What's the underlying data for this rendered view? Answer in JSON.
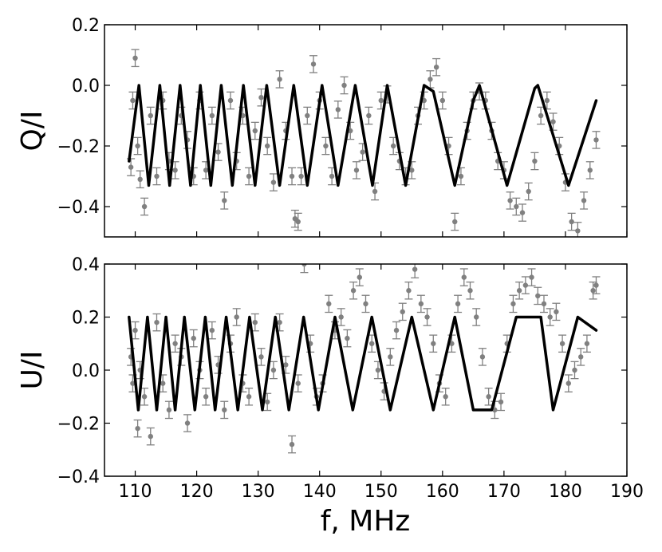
{
  "chart_data": [
    {
      "type": "line",
      "title": "",
      "xlabel": "",
      "ylabel": "Q/I",
      "xlim": [
        105,
        190
      ],
      "ylim": [
        -0.5,
        0.2
      ],
      "yticks": [
        "0.2",
        "0.0",
        "−0.2",
        "−0.4"
      ],
      "ytick_values": [
        0.2,
        0.0,
        -0.2,
        -0.4
      ],
      "grid": false,
      "series": [
        {
          "style": "model curve (solid black line)",
          "color": "#000000",
          "x": [
            109.0,
            110.6,
            112.2,
            114.0,
            115.6,
            117.3,
            119.0,
            120.6,
            122.3,
            124.0,
            125.8,
            127.6,
            129.5,
            131.4,
            133.5,
            135.8,
            138.0,
            140.4,
            143.0,
            145.8,
            148.6,
            151.0,
            154.0,
            157.0,
            158.5,
            162.0,
            165.0,
            166.0,
            170.5,
            175.0,
            175.5,
            180.5,
            185.0
          ],
          "values": [
            -0.25,
            0.0,
            -0.33,
            0.0,
            -0.33,
            0.0,
            -0.33,
            0.0,
            -0.33,
            0.0,
            -0.33,
            0.0,
            -0.33,
            0.0,
            -0.33,
            0.0,
            -0.33,
            0.0,
            -0.33,
            0.0,
            -0.33,
            0.0,
            -0.33,
            0.0,
            -0.02,
            -0.33,
            -0.05,
            0.0,
            -0.33,
            -0.01,
            0.0,
            -0.33,
            -0.05
          ]
        },
        {
          "style": "measured points with error bars (grey)",
          "color": "#808080",
          "x": [
            109.3,
            109.6,
            110.0,
            110.4,
            110.8,
            111.5,
            112.5,
            113.5,
            114.5,
            115.5,
            116.5,
            117.5,
            118.5,
            119.5,
            120.5,
            121.5,
            122.5,
            123.5,
            124.5,
            125.5,
            126.5,
            127.5,
            128.5,
            129.5,
            130.5,
            131.5,
            132.5,
            133.5,
            134.5,
            135.5,
            136.0,
            136.5,
            137.0,
            138.0,
            139.0,
            140.0,
            141.0,
            142.0,
            143.0,
            144.0,
            145.0,
            146.0,
            147.0,
            148.0,
            149.0,
            150.0,
            151.0,
            152.0,
            153.0,
            154.0,
            155.0,
            156.0,
            157.0,
            158.0,
            159.0,
            160.0,
            161.0,
            162.0,
            163.0,
            164.0,
            165.0,
            166.0,
            167.0,
            168.0,
            169.0,
            170.0,
            171.0,
            172.0,
            173.0,
            174.0,
            175.0,
            176.0,
            177.0,
            178.0,
            179.0,
            180.0,
            181.0,
            182.0,
            183.0,
            184.0,
            185.0
          ],
          "values": [
            -0.27,
            -0.05,
            0.09,
            -0.2,
            -0.31,
            -0.4,
            -0.1,
            -0.3,
            -0.05,
            -0.25,
            -0.28,
            -0.1,
            -0.18,
            -0.3,
            -0.05,
            -0.28,
            -0.1,
            -0.22,
            -0.38,
            -0.05,
            -0.25,
            -0.1,
            -0.3,
            -0.15,
            -0.04,
            -0.2,
            -0.32,
            0.02,
            -0.15,
            -0.3,
            -0.44,
            -0.45,
            -0.3,
            -0.1,
            0.07,
            -0.05,
            -0.2,
            -0.3,
            -0.08,
            0.0,
            -0.15,
            -0.28,
            -0.22,
            -0.1,
            -0.35,
            -0.05,
            -0.03,
            -0.2,
            -0.25,
            -0.3,
            -0.28,
            -0.1,
            -0.05,
            0.02,
            0.06,
            -0.05,
            -0.2,
            -0.45,
            -0.3,
            -0.15,
            -0.05,
            -0.02,
            -0.05,
            -0.15,
            -0.25,
            -0.28,
            -0.38,
            -0.4,
            -0.42,
            -0.35,
            -0.25,
            -0.1,
            -0.05,
            -0.12,
            -0.2,
            -0.32,
            -0.45,
            -0.48,
            -0.38,
            -0.28,
            -0.18
          ]
        }
      ]
    },
    {
      "type": "line",
      "title": "",
      "xlabel": "f, MHz",
      "ylabel": "U/I",
      "xlim": [
        105,
        190
      ],
      "ylim": [
        -0.4,
        0.4
      ],
      "xticks": [
        "110",
        "120",
        "130",
        "140",
        "150",
        "160",
        "170",
        "180",
        "190"
      ],
      "xtick_values": [
        110,
        120,
        130,
        140,
        150,
        160,
        170,
        180,
        190
      ],
      "yticks": [
        "0.4",
        "0.2",
        "0.0",
        "−0.2",
        "−0.4"
      ],
      "ytick_values": [
        0.4,
        0.2,
        0.0,
        -0.2,
        -0.4
      ],
      "grid": false,
      "series": [
        {
          "style": "model curve (solid black line)",
          "color": "#000000",
          "x": [
            109.0,
            110.5,
            112.0,
            113.5,
            115.0,
            116.5,
            118.0,
            119.7,
            121.4,
            123.0,
            124.8,
            126.7,
            128.6,
            130.7,
            132.8,
            135.0,
            137.4,
            139.8,
            142.5,
            145.4,
            148.5,
            151.5,
            155.0,
            158.5,
            162.0,
            165.0,
            168.0,
            172.0,
            176.0,
            178.0,
            182.0,
            185.0
          ],
          "values": [
            0.2,
            -0.15,
            0.2,
            -0.15,
            0.2,
            -0.15,
            0.2,
            -0.15,
            0.2,
            -0.15,
            0.2,
            -0.15,
            0.2,
            -0.15,
            0.2,
            -0.15,
            0.2,
            -0.15,
            0.2,
            -0.15,
            0.2,
            -0.15,
            0.2,
            -0.15,
            0.2,
            -0.15,
            -0.15,
            0.2,
            0.2,
            -0.15,
            0.2,
            0.15
          ]
        },
        {
          "style": "measured points with error bars (grey)",
          "color": "#808080",
          "x": [
            109.3,
            109.6,
            110.0,
            110.4,
            110.8,
            111.5,
            112.5,
            113.5,
            114.5,
            115.5,
            116.5,
            117.5,
            118.5,
            119.5,
            120.5,
            121.5,
            122.5,
            123.5,
            124.5,
            125.5,
            126.5,
            127.5,
            128.5,
            129.5,
            130.5,
            131.5,
            132.5,
            133.5,
            134.5,
            135.5,
            136.5,
            137.5,
            138.5,
            139.5,
            140.5,
            141.5,
            142.5,
            143.5,
            144.5,
            145.5,
            146.5,
            147.5,
            148.5,
            149.5,
            150.5,
            151.5,
            152.5,
            153.5,
            154.5,
            155.5,
            156.5,
            157.5,
            158.5,
            159.5,
            160.5,
            161.5,
            162.5,
            163.5,
            164.5,
            165.5,
            166.5,
            167.5,
            168.5,
            169.5,
            170.5,
            171.5,
            172.5,
            173.5,
            174.5,
            175.5,
            176.5,
            177.5,
            178.5,
            179.5,
            180.5,
            181.5,
            182.5,
            183.5,
            184.5,
            185.0
          ],
          "values": [
            0.05,
            -0.05,
            0.15,
            -0.22,
            0.0,
            -0.1,
            -0.25,
            0.18,
            -0.05,
            -0.15,
            0.1,
            0.05,
            -0.2,
            0.12,
            0.0,
            -0.1,
            0.15,
            0.02,
            -0.15,
            0.1,
            0.2,
            -0.05,
            -0.1,
            0.18,
            0.05,
            -0.12,
            0.0,
            0.18,
            0.02,
            -0.28,
            -0.05,
            0.4,
            0.1,
            -0.1,
            -0.05,
            0.25,
            0.15,
            0.2,
            0.12,
            0.3,
            0.35,
            0.25,
            0.1,
            0.0,
            -0.08,
            0.05,
            0.15,
            0.22,
            0.3,
            0.38,
            0.25,
            0.2,
            0.1,
            -0.05,
            -0.1,
            0.1,
            0.25,
            0.35,
            0.3,
            0.2,
            0.05,
            -0.1,
            -0.15,
            -0.12,
            0.1,
            0.25,
            0.3,
            0.32,
            0.35,
            0.28,
            0.25,
            0.2,
            0.22,
            0.1,
            -0.05,
            0.0,
            0.05,
            0.1,
            0.3,
            0.32
          ]
        }
      ]
    }
  ]
}
